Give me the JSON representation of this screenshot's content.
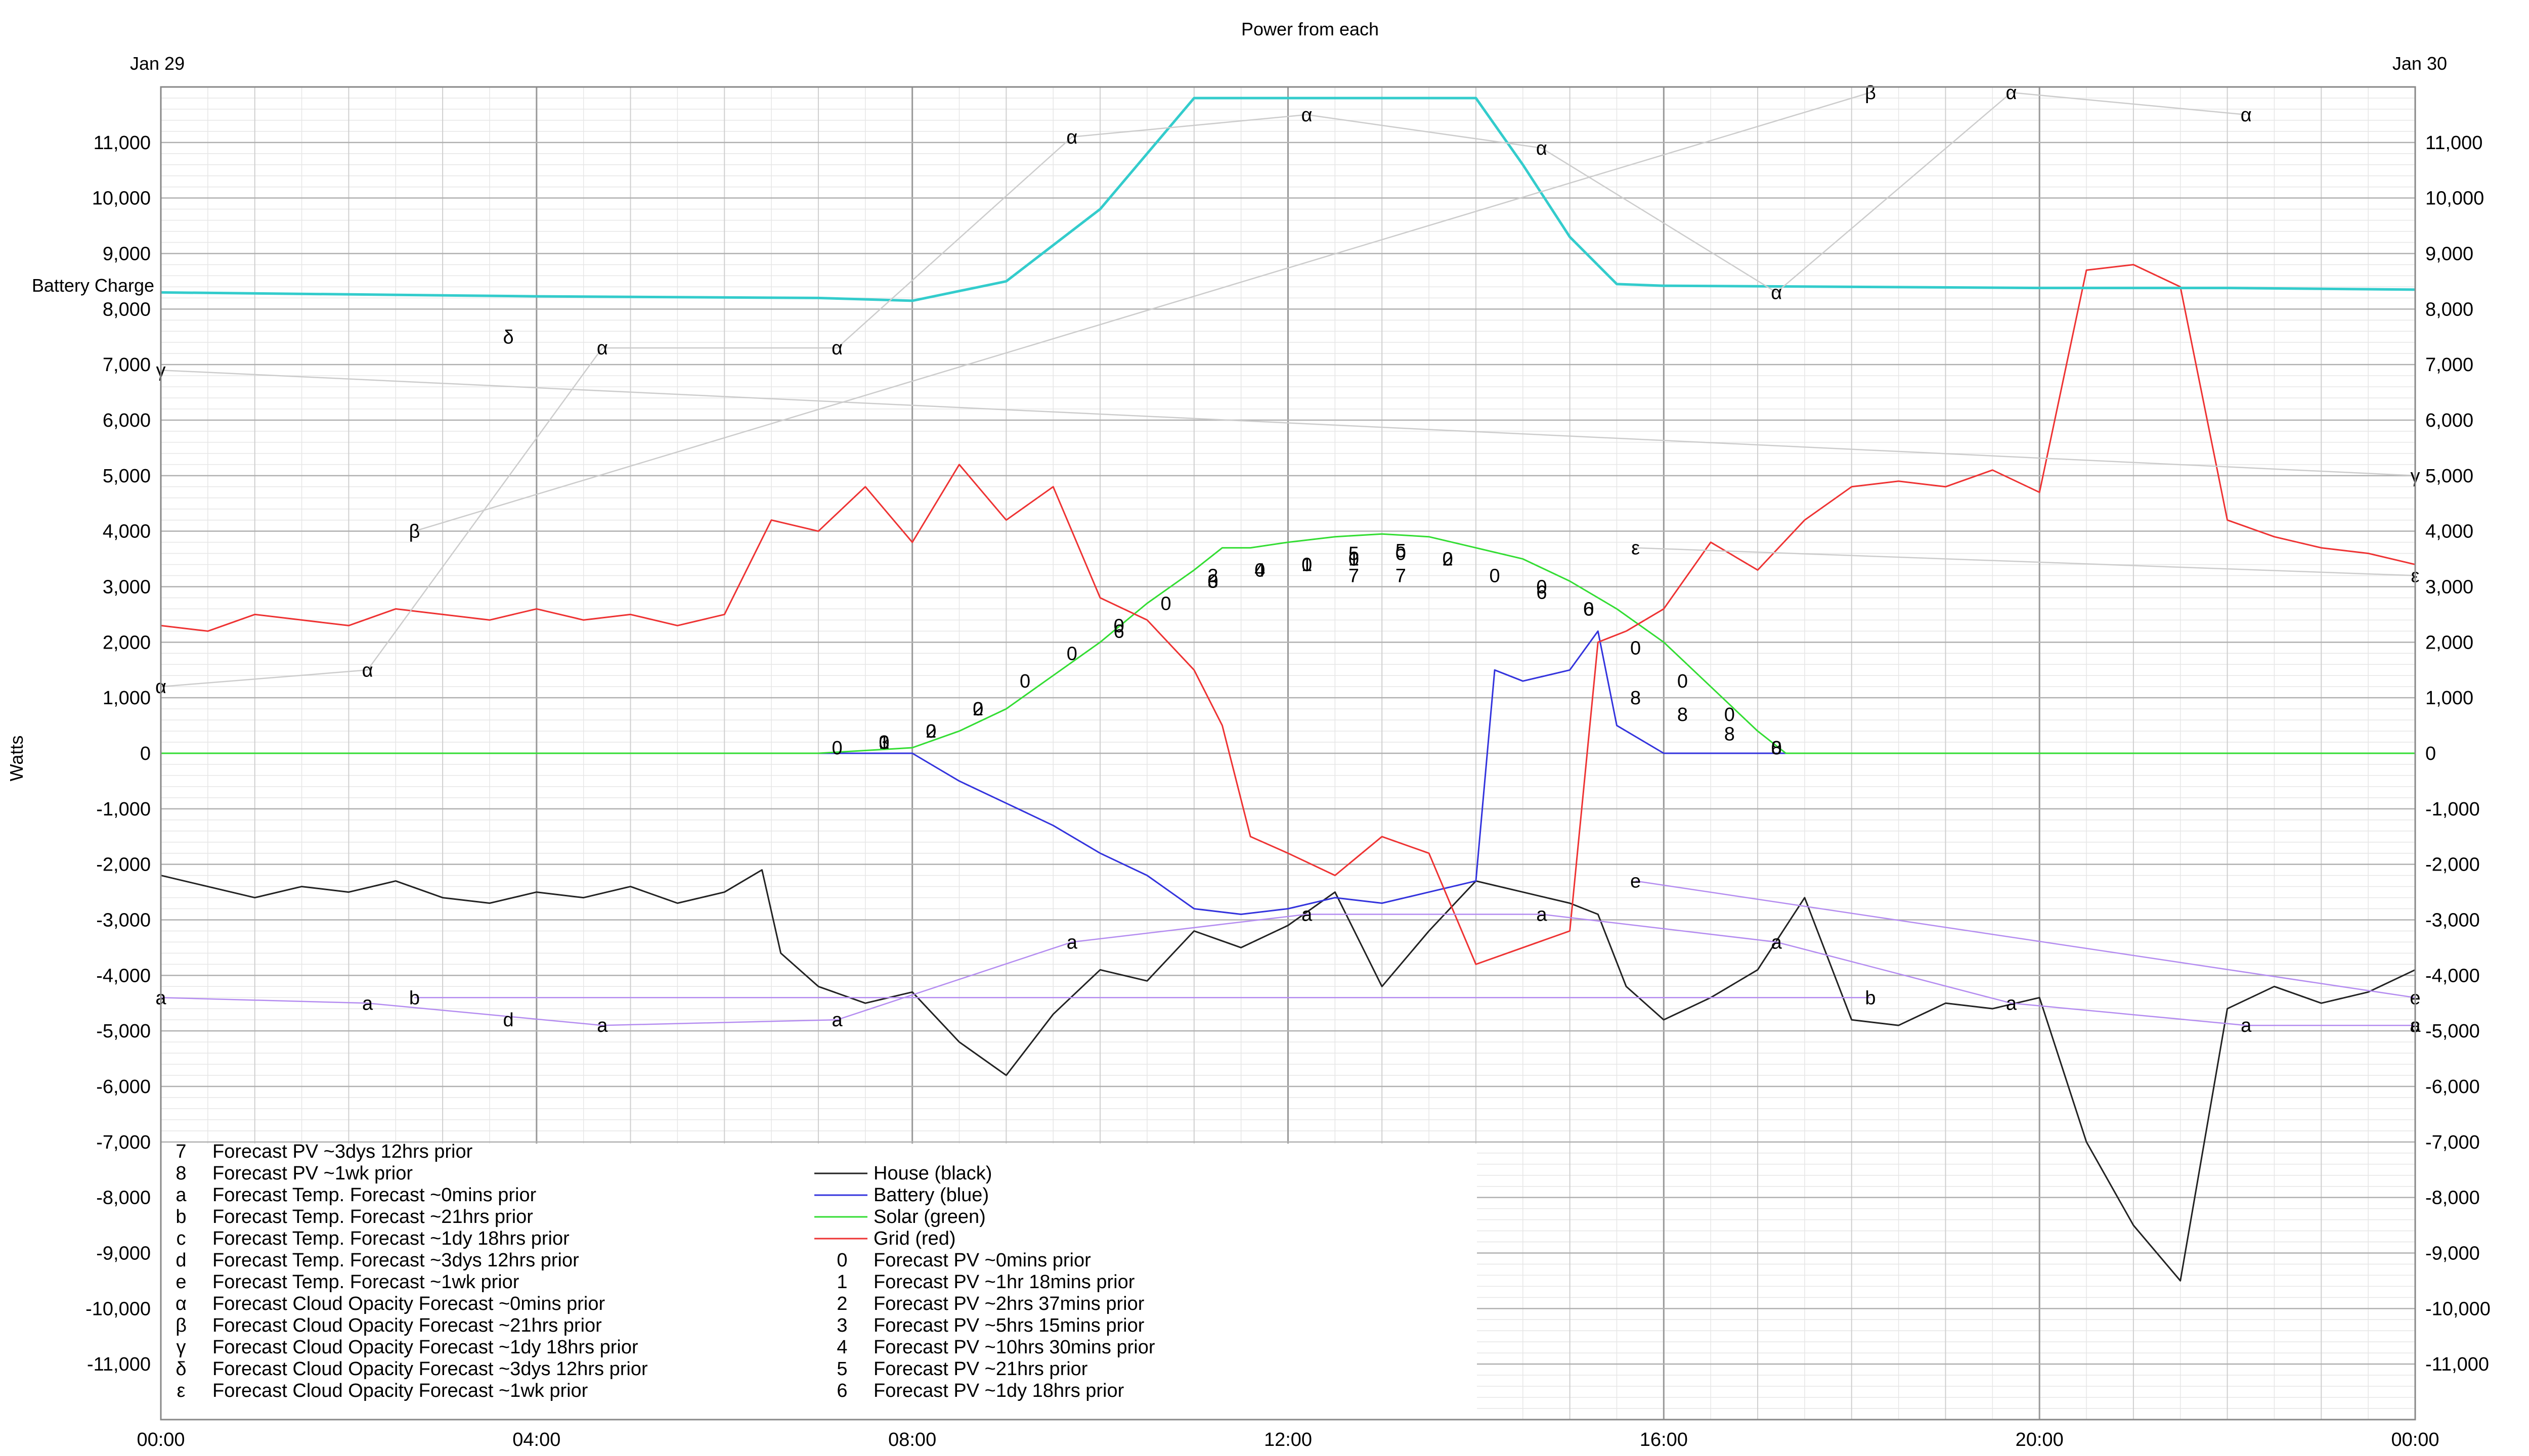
{
  "chart_data": {
    "type": "line",
    "title": "Power from each",
    "ylabel": "Watts",
    "date_left": "Jan 29",
    "date_right": "Jan 30",
    "ylim": [
      -12000,
      12000
    ],
    "xlim_hours": [
      0,
      24
    ],
    "x_ticks": [
      "00:00",
      "04:00",
      "08:00",
      "12:00",
      "16:00",
      "20:00",
      "00:00"
    ],
    "y_ticks": [
      11000,
      10000,
      9000,
      8000,
      7000,
      6000,
      5000,
      4000,
      3000,
      2000,
      1000,
      0,
      -1000,
      -2000,
      -3000,
      -4000,
      -5000,
      -6000,
      -7000,
      -8000,
      -9000,
      -10000,
      -11000
    ],
    "y_tick_labels": [
      "11,000",
      "10,000",
      "9,000",
      "8,000",
      "7,000",
      "6,000",
      "5,000",
      "4,000",
      "3,000",
      "2,000",
      "1,000",
      "0",
      "-1,000",
      "-2,000",
      "-3,000",
      "-4,000",
      "-5,000",
      "-6,000",
      "-7,000",
      "-8,000",
      "-9,000",
      "-10,000",
      "-11,000"
    ],
    "grid": true,
    "annotations": {
      "battery_charge": "Battery Charge"
    },
    "colors": {
      "house": "#222222",
      "battery": "#3333dd",
      "solar": "#33dd33",
      "grid": "#ee3333",
      "battery_charge": "#33cccc",
      "temp_forecast": "#b48cf0",
      "cloud_forecast": "#cccccc",
      "grid_major": "#b0b0b0",
      "grid_minor": "#e6e6e6"
    },
    "series": [
      {
        "name": "House (black)",
        "key": "house",
        "x": [
          0,
          0.5,
          1,
          1.5,
          2,
          2.5,
          3,
          3.5,
          4,
          4.5,
          5,
          5.5,
          6,
          6.4,
          6.6,
          7,
          7.5,
          8,
          8.5,
          9,
          9.5,
          10,
          10.5,
          11,
          11.5,
          12,
          12.5,
          13,
          13.5,
          14,
          14.5,
          15,
          15.3,
          15.6,
          16,
          16.5,
          17,
          17.5,
          18,
          18.5,
          19,
          19.5,
          20,
          20.5,
          21,
          21.5,
          22,
          22.5,
          23,
          23.5,
          24
        ],
        "y": [
          -2200,
          -2400,
          -2600,
          -2400,
          -2500,
          -2300,
          -2600,
          -2700,
          -2500,
          -2600,
          -2400,
          -2700,
          -2500,
          -2100,
          -3600,
          -4200,
          -4500,
          -4300,
          -5200,
          -5800,
          -4700,
          -3900,
          -4100,
          -3200,
          -3500,
          -3100,
          -2500,
          -4200,
          -3200,
          -2300,
          -2500,
          -2700,
          -2900,
          -4200,
          -4800,
          -4400,
          -3900,
          -2600,
          -4800,
          -4900,
          -4500,
          -4600,
          -4400,
          -7000,
          -8500,
          -9500,
          -4600,
          -4200,
          -4500,
          -4300,
          -3900
        ]
      },
      {
        "name": "Battery (blue)",
        "key": "battery",
        "x": [
          0,
          7,
          8,
          8.3,
          8.5,
          9,
          9.5,
          10,
          10.5,
          11,
          11.5,
          12,
          12.5,
          13,
          13.5,
          14,
          14.2,
          14.5,
          15,
          15.3,
          15.5,
          16,
          16.5,
          17,
          18,
          20,
          22,
          24
        ],
        "y": [
          0,
          0,
          0,
          -300,
          -500,
          -900,
          -1300,
          -1800,
          -2200,
          -2800,
          -2900,
          -2800,
          -2600,
          -2700,
          -2500,
          -2300,
          1500,
          1300,
          1500,
          2200,
          500,
          0,
          0,
          0,
          0,
          0,
          0,
          0
        ]
      },
      {
        "name": "Solar (green)",
        "key": "solar",
        "x": [
          0,
          7,
          8,
          8.5,
          9,
          9.5,
          10,
          10.5,
          11,
          11.3,
          11.6,
          12,
          12.5,
          13,
          13.5,
          14,
          14.5,
          15,
          15.5,
          16,
          16.5,
          17,
          17.3,
          18,
          24
        ],
        "y": [
          0,
          0,
          100,
          400,
          800,
          1400,
          2000,
          2700,
          3300,
          3700,
          3700,
          3800,
          3900,
          3950,
          3900,
          3700,
          3500,
          3100,
          2600,
          2000,
          1200,
          400,
          0,
          0,
          0
        ]
      },
      {
        "name": "Grid (red)",
        "key": "grid",
        "x": [
          0,
          0.5,
          1,
          1.5,
          2,
          2.5,
          3,
          3.5,
          4,
          4.5,
          5,
          5.5,
          6,
          6.5,
          7,
          7.5,
          8,
          8.5,
          9,
          9.5,
          10,
          10.5,
          11,
          11.3,
          11.6,
          12,
          12.5,
          13,
          13.5,
          14,
          14.5,
          15,
          15.3,
          15.6,
          16,
          16.5,
          17,
          17.5,
          18,
          18.5,
          19,
          19.5,
          20,
          20.5,
          21,
          21.5,
          22,
          22.5,
          23,
          23.5,
          24
        ],
        "y": [
          2300,
          2200,
          2500,
          2400,
          2300,
          2600,
          2500,
          2400,
          2600,
          2400,
          2500,
          2300,
          2500,
          4200,
          4000,
          4800,
          3800,
          5200,
          4200,
          4800,
          2800,
          2400,
          1500,
          500,
          -1500,
          -1800,
          -2200,
          -1500,
          -1800,
          -3800,
          -3500,
          -3200,
          2000,
          2200,
          2600,
          3800,
          3300,
          4200,
          4800,
          4900,
          4800,
          5100,
          4700,
          8700,
          8800,
          8400,
          4200,
          3900,
          3700,
          3600,
          3400
        ]
      },
      {
        "name": "Battery Charge",
        "key": "battery_charge",
        "x": [
          0,
          4,
          7,
          8,
          9,
          10,
          11,
          12,
          14,
          14.5,
          15,
          15.5,
          16,
          18,
          20,
          22,
          24
        ],
        "y": [
          8300,
          8230,
          8200,
          8150,
          8500,
          9800,
          11800,
          11800,
          11800,
          10600,
          9300,
          8450,
          8420,
          8400,
          8380,
          8380,
          8350
        ]
      },
      {
        "name": "Forecast PV ~0mins prior",
        "key": "fpv0",
        "glyph": "0",
        "x": [
          7.2,
          7.7,
          8.2,
          8.7,
          9.2,
          9.7,
          10.2,
          10.7,
          11.2,
          11.7,
          12.2,
          12.7,
          13.2,
          13.7,
          14.2,
          14.7,
          15.2,
          15.7,
          16.2,
          16.7,
          17.2
        ],
        "y": [
          100,
          200,
          400,
          800,
          1300,
          1800,
          2300,
          2700,
          3100,
          3300,
          3400,
          3500,
          3600,
          3500,
          3200,
          3000,
          2600,
          1900,
          1300,
          700,
          100
        ]
      },
      {
        "name": "Forecast PV ~1hr 18mins prior",
        "key": "fpv1",
        "glyph": "1",
        "x": [
          7.7,
          12.2,
          12.7
        ],
        "y": [
          200,
          3400,
          3500
        ]
      },
      {
        "name": "Forecast PV ~2hrs 37mins prior",
        "key": "fpv2",
        "glyph": "2",
        "x": [
          8.2,
          8.7,
          11.2,
          13.7
        ],
        "y": [
          400,
          800,
          3200,
          3500
        ]
      },
      {
        "name": "Forecast PV ~5hrs 15mins prior",
        "key": "fpv3",
        "glyph": "3",
        "x": [
          7.7,
          11.2
        ],
        "y": [
          200,
          3100
        ]
      },
      {
        "name": "Forecast PV ~10hrs 30mins prior",
        "key": "fpv4",
        "glyph": "4",
        "x": [
          11.7
        ],
        "y": [
          3300
        ]
      },
      {
        "name": "Forecast PV ~21hrs prior",
        "key": "fpv5",
        "glyph": "5",
        "x": [
          12.7,
          13.2
        ],
        "y": [
          3600,
          3650
        ]
      },
      {
        "name": "Forecast PV ~1dy 18hrs prior",
        "key": "fpv6",
        "glyph": "6",
        "x": [
          10.2,
          14.7,
          15.2
        ],
        "y": [
          2200,
          2900,
          2600
        ]
      },
      {
        "name": "Forecast PV ~3dys 12hrs prior",
        "key": "fpv7",
        "glyph": "7",
        "x": [
          12.7,
          13.2
        ],
        "y": [
          3200,
          3200
        ]
      },
      {
        "name": "Forecast PV ~1wk prior",
        "key": "fpv8",
        "glyph": "8",
        "x": [
          15.7,
          16.2,
          16.7,
          17.2
        ],
        "y": [
          1000,
          700,
          350,
          100
        ]
      },
      {
        "name": "Forecast Temp. Forecast ~0mins prior",
        "key": "ftemp0",
        "glyph": "a",
        "x": [
          0,
          2.2,
          4.7,
          7.2,
          9.7,
          12.2,
          14.7,
          17.2,
          19.7,
          22.2,
          24
        ],
        "y": [
          -4400,
          -4500,
          -4900,
          -4800,
          -3400,
          -2900,
          -2900,
          -3400,
          -4500,
          -4900,
          -4900
        ]
      },
      {
        "name": "Forecast Temp. Forecast ~21hrs prior",
        "key": "ftemp1",
        "glyph": "b",
        "x": [
          2.7,
          18.2
        ],
        "y": [
          -4400,
          -4400
        ]
      },
      {
        "name": "Forecast Temp. Forecast ~1dy 18hrs prior",
        "key": "ftemp2",
        "glyph": "c",
        "x": [
          24
        ],
        "y": [
          -4900
        ]
      },
      {
        "name": "Forecast Temp. Forecast ~3dys 12hrs prior",
        "key": "ftemp3",
        "glyph": "d",
        "x": [
          3.7
        ],
        "y": [
          -4800
        ]
      },
      {
        "name": "Forecast Temp. Forecast ~1wk prior",
        "key": "ftemp4",
        "glyph": "e",
        "x": [
          15.7,
          24
        ],
        "y": [
          -2300,
          -4400
        ]
      },
      {
        "name": "Forecast Cloud Opacity Forecast ~0mins prior",
        "key": "fcloud0",
        "glyph": "α",
        "x": [
          0,
          2.2,
          4.7,
          7.2,
          9.7,
          12.2,
          14.7,
          17.2,
          19.7,
          22.2
        ],
        "y": [
          1200,
          1500,
          7300,
          7300,
          11100,
          11500,
          10900,
          8300,
          11900,
          11500
        ]
      },
      {
        "name": "Forecast Cloud Opacity Forecast ~21hrs prior",
        "key": "fcloud1",
        "glyph": "β",
        "x": [
          2.7,
          18.2
        ],
        "y": [
          4000,
          11900
        ]
      },
      {
        "name": "Forecast Cloud Opacity Forecast ~1dy 18hrs prior",
        "key": "fcloud2",
        "glyph": "γ",
        "x": [
          0,
          24
        ],
        "y": [
          6900,
          5000
        ]
      },
      {
        "name": "Forecast Cloud Opacity Forecast ~3dys 12hrs prior",
        "key": "fcloud3",
        "glyph": "δ",
        "x": [
          3.7
        ],
        "y": [
          7500
        ]
      },
      {
        "name": "Forecast Cloud Opacity Forecast ~1wk prior",
        "key": "fcloud4",
        "glyph": "ε",
        "x": [
          15.7,
          24
        ],
        "y": [
          3700,
          3200
        ]
      }
    ],
    "legend_left": [
      {
        "glyph": "7",
        "label": "Forecast PV ~3dys 12hrs prior"
      },
      {
        "glyph": "8",
        "label": "Forecast PV ~1wk prior"
      },
      {
        "glyph": "a",
        "label": "Forecast Temp. Forecast ~0mins prior"
      },
      {
        "glyph": "b",
        "label": "Forecast Temp. Forecast ~21hrs prior"
      },
      {
        "glyph": "c",
        "label": "Forecast Temp. Forecast ~1dy 18hrs prior"
      },
      {
        "glyph": "d",
        "label": "Forecast Temp. Forecast ~3dys 12hrs prior"
      },
      {
        "glyph": "e",
        "label": "Forecast Temp. Forecast ~1wk prior"
      },
      {
        "glyph": "α",
        "label": "Forecast Cloud Opacity Forecast ~0mins prior"
      },
      {
        "glyph": "β",
        "label": "Forecast Cloud Opacity Forecast ~21hrs prior"
      },
      {
        "glyph": "γ",
        "label": "Forecast Cloud Opacity Forecast ~1dy 18hrs prior"
      },
      {
        "glyph": "δ",
        "label": "Forecast Cloud Opacity Forecast ~3dys 12hrs prior"
      },
      {
        "glyph": "ε",
        "label": "Forecast Cloud Opacity Forecast ~1wk prior"
      }
    ],
    "legend_right": [
      {
        "glyph": "",
        "key": "house",
        "label": "House (black)"
      },
      {
        "glyph": "",
        "key": "battery",
        "label": "Battery (blue)"
      },
      {
        "glyph": "",
        "key": "solar",
        "label": "Solar (green)"
      },
      {
        "glyph": "",
        "key": "grid",
        "label": "Grid (red)"
      },
      {
        "glyph": "0",
        "label": "Forecast PV ~0mins prior"
      },
      {
        "glyph": "1",
        "label": "Forecast PV ~1hr 18mins prior"
      },
      {
        "glyph": "2",
        "label": "Forecast PV ~2hrs 37mins prior"
      },
      {
        "glyph": "3",
        "label": "Forecast PV ~5hrs 15mins prior"
      },
      {
        "glyph": "4",
        "label": "Forecast PV ~10hrs 30mins prior"
      },
      {
        "glyph": "5",
        "label": "Forecast PV ~21hrs prior"
      },
      {
        "glyph": "6",
        "label": "Forecast PV ~1dy 18hrs prior"
      }
    ]
  }
}
